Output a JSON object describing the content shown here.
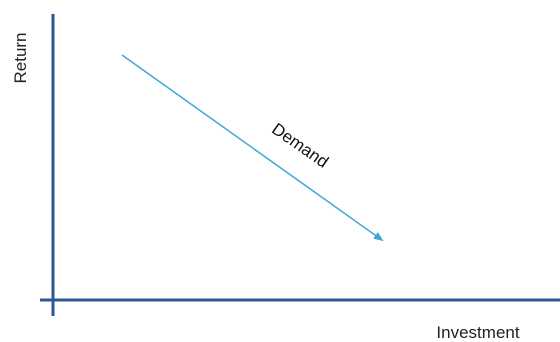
{
  "axes": {
    "y_label": "Return",
    "x_label": "Investment",
    "color": "#2F5597"
  },
  "curve": {
    "label": "Demand",
    "color": "#41A5DC",
    "direction": "downward-sloping",
    "arrowhead": "arrow-head-icon"
  }
}
